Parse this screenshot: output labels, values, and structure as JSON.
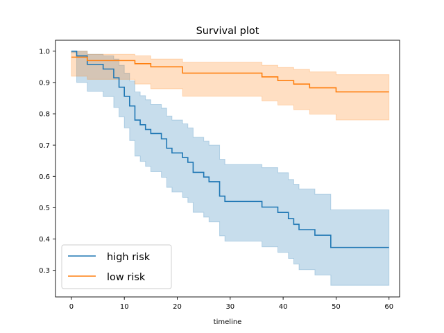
{
  "chart_data": {
    "type": "line",
    "title": "Survival plot",
    "xlabel": "timeline",
    "ylabel": "",
    "xlim": [
      -3,
      62
    ],
    "ylim": [
      0.215,
      1.035
    ],
    "xticks": [
      0,
      10,
      20,
      30,
      40,
      50,
      60
    ],
    "yticks": [
      0.3,
      0.4,
      0.5,
      0.6,
      0.7,
      0.8,
      0.9,
      1.0
    ],
    "xtick_labels": [
      "0",
      "10",
      "20",
      "30",
      "40",
      "50",
      "60"
    ],
    "ytick_labels": [
      "0.3",
      "0.4",
      "0.5",
      "0.6",
      "0.7",
      "0.8",
      "0.9",
      "1.0"
    ],
    "grid": false,
    "legend_position": "bottom-left",
    "series": [
      {
        "name": "high risk",
        "color": "#1f77b4",
        "step": "post",
        "x": [
          0,
          1,
          3,
          6,
          8,
          9,
          10,
          11,
          12,
          13,
          14,
          15,
          17,
          18,
          19,
          21,
          22,
          23,
          25,
          26,
          28,
          29,
          36,
          39,
          41,
          42,
          43,
          46,
          49,
          60
        ],
        "y": [
          1.0,
          0.985,
          0.958,
          0.943,
          0.915,
          0.885,
          0.856,
          0.825,
          0.78,
          0.765,
          0.75,
          0.737,
          0.72,
          0.69,
          0.675,
          0.66,
          0.645,
          0.613,
          0.598,
          0.583,
          0.537,
          0.52,
          0.502,
          0.485,
          0.465,
          0.447,
          0.43,
          0.412,
          0.373,
          0.373
        ],
        "ci_lower": [
          0.995,
          0.9,
          0.872,
          0.855,
          0.82,
          0.79,
          0.755,
          0.715,
          0.665,
          0.648,
          0.632,
          0.615,
          0.597,
          0.565,
          0.55,
          0.533,
          0.517,
          0.485,
          0.47,
          0.455,
          0.41,
          0.393,
          0.375,
          0.357,
          0.338,
          0.32,
          0.302,
          0.285,
          0.252,
          0.252
        ],
        "ci_upper": [
          1.0,
          1.0,
          0.99,
          0.985,
          0.975,
          0.955,
          0.93,
          0.905,
          0.87,
          0.858,
          0.845,
          0.83,
          0.818,
          0.793,
          0.78,
          0.768,
          0.755,
          0.725,
          0.713,
          0.7,
          0.655,
          0.638,
          0.628,
          0.612,
          0.59,
          0.575,
          0.56,
          0.543,
          0.493,
          0.493
        ]
      },
      {
        "name": "low risk",
        "color": "#ff7f0e",
        "step": "post",
        "x": [
          0,
          3,
          9,
          12,
          15,
          21,
          36,
          39,
          42,
          45,
          50,
          60
        ],
        "y": [
          0.981,
          0.97,
          0.97,
          0.96,
          0.95,
          0.93,
          0.918,
          0.906,
          0.895,
          0.883,
          0.87,
          0.87
        ],
        "ci_lower": [
          0.92,
          0.91,
          0.91,
          0.895,
          0.88,
          0.856,
          0.841,
          0.828,
          0.813,
          0.799,
          0.78,
          0.78
        ],
        "ci_upper": [
          1.0,
          0.99,
          0.99,
          0.985,
          0.975,
          0.965,
          0.955,
          0.948,
          0.942,
          0.934,
          0.925,
          0.925
        ]
      }
    ]
  }
}
